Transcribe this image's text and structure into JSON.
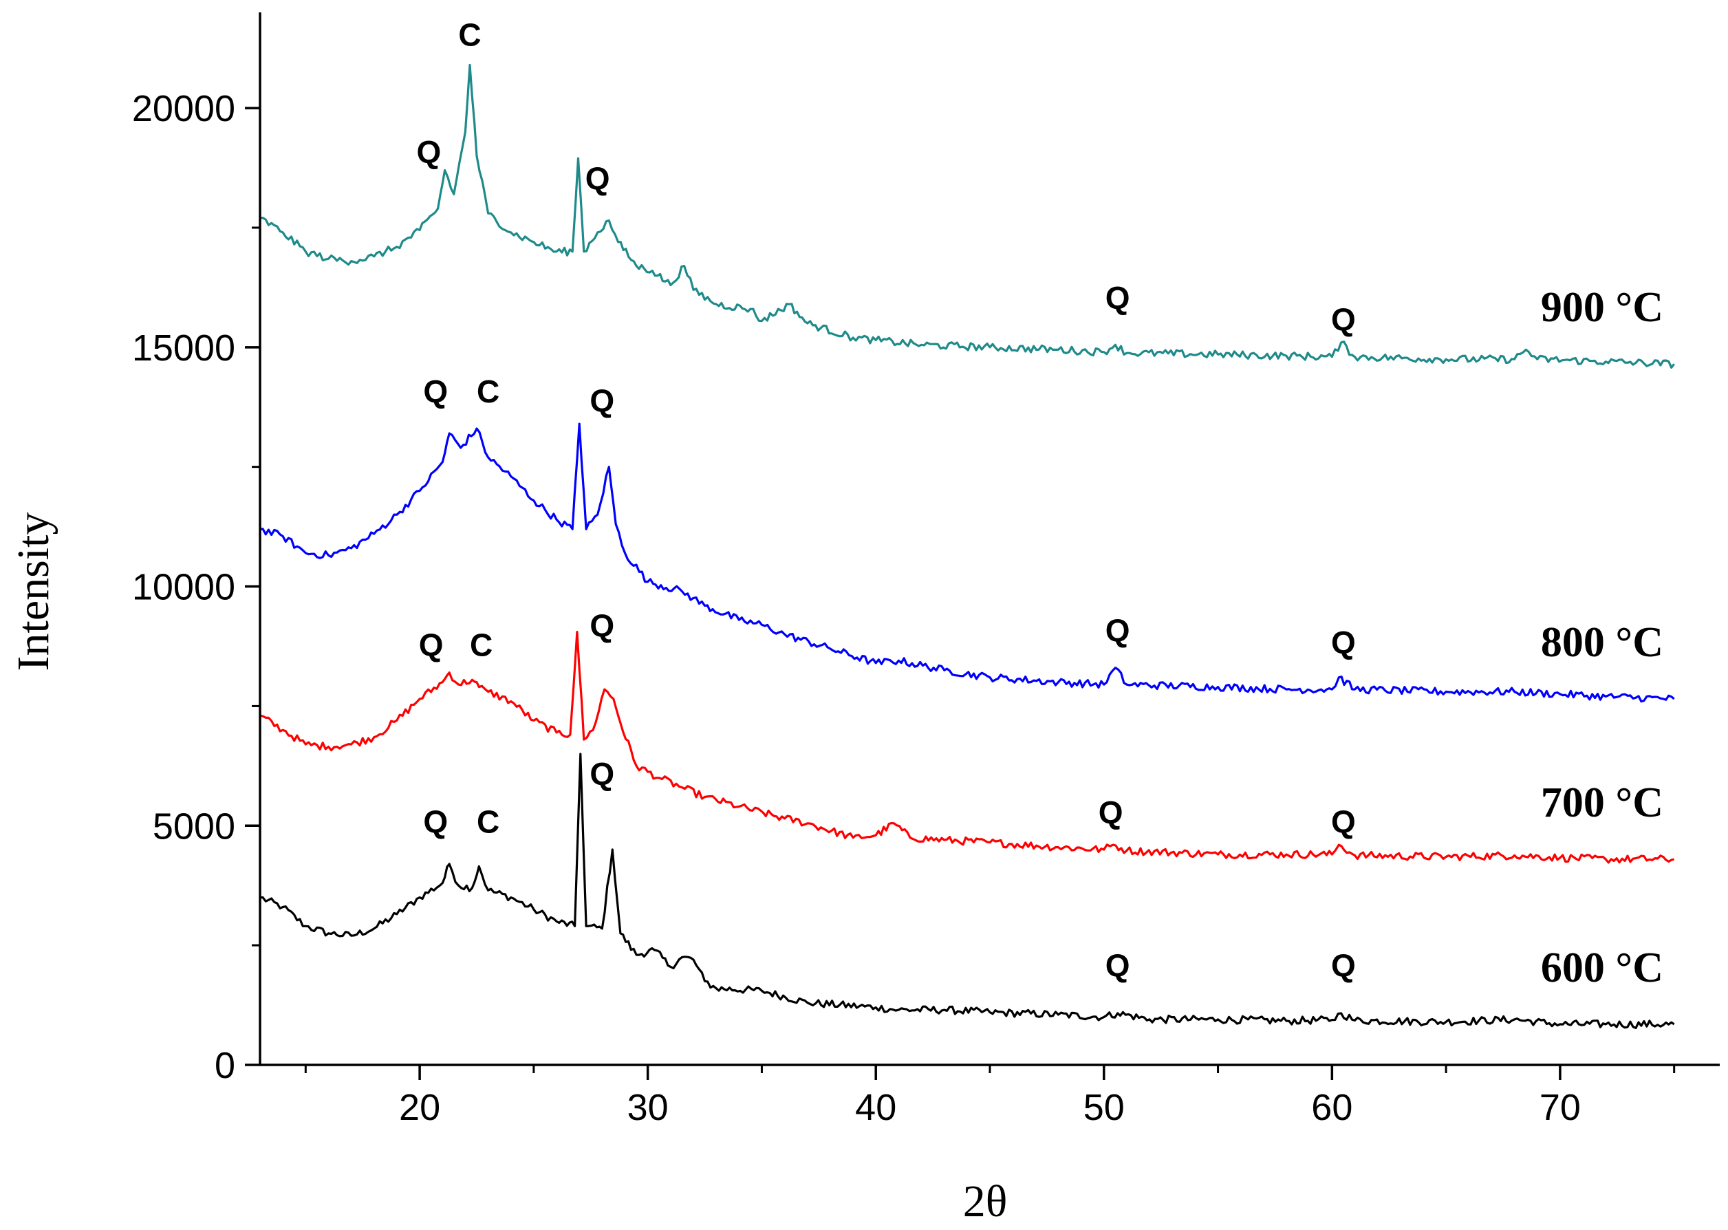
{
  "chart_data": {
    "type": "line",
    "title": "",
    "xlabel": "2θ",
    "ylabel": "Intensity",
    "xlim": [
      13,
      77
    ],
    "ylim": [
      0,
      22000
    ],
    "xticks": [
      20,
      30,
      40,
      50,
      60,
      70
    ],
    "yticks": [
      0,
      5000,
      10000,
      15000,
      20000
    ],
    "grid": false,
    "series": [
      {
        "name": "600 °C",
        "color": "#000000",
        "points": [
          [
            13,
            3500
          ],
          [
            14,
            3300
          ],
          [
            15,
            2900
          ],
          [
            16,
            2750
          ],
          [
            17,
            2700
          ],
          [
            18,
            2850
          ],
          [
            19,
            3150
          ],
          [
            20,
            3500
          ],
          [
            21,
            3800
          ],
          [
            21.3,
            4200
          ],
          [
            21.7,
            3750
          ],
          [
            22.3,
            3700
          ],
          [
            22.6,
            4150
          ],
          [
            23,
            3650
          ],
          [
            24,
            3500
          ],
          [
            25,
            3250
          ],
          [
            26,
            3000
          ],
          [
            26.8,
            2900
          ],
          [
            27.05,
            6500
          ],
          [
            27.3,
            2900
          ],
          [
            28,
            2850
          ],
          [
            28.45,
            4500
          ],
          [
            28.8,
            2750
          ],
          [
            29.5,
            2300
          ],
          [
            30.3,
            2400
          ],
          [
            31,
            2050
          ],
          [
            31.5,
            2250
          ],
          [
            32,
            2200
          ],
          [
            32.5,
            1750
          ],
          [
            33,
            1600
          ],
          [
            35,
            1550
          ],
          [
            37,
            1300
          ],
          [
            40,
            1200
          ],
          [
            41,
            1150
          ],
          [
            43,
            1150
          ],
          [
            45,
            1100
          ],
          [
            48,
            1050
          ],
          [
            50,
            1000
          ],
          [
            50.6,
            1080
          ],
          [
            52,
            950
          ],
          [
            55,
            950
          ],
          [
            58,
            920
          ],
          [
            60,
            940
          ],
          [
            60.4,
            1080
          ],
          [
            61,
            930
          ],
          [
            65,
            900
          ],
          [
            68,
            950
          ],
          [
            70,
            850
          ],
          [
            72,
            850
          ],
          [
            75,
            850
          ]
        ],
        "labels": [
          {
            "text": "Q",
            "x": 20.7,
            "y": 4850
          },
          {
            "text": "C",
            "x": 23.0,
            "y": 4850
          },
          {
            "text": "Q",
            "x": 28.0,
            "y": 5850
          },
          {
            "text": "Q",
            "x": 50.6,
            "y": 1850
          },
          {
            "text": "Q",
            "x": 60.5,
            "y": 1850
          }
        ],
        "temp_label": "600 °C"
      },
      {
        "name": "700 °C",
        "color": "#ff0000",
        "points": [
          [
            13,
            7300
          ],
          [
            14,
            7000
          ],
          [
            15,
            6700
          ],
          [
            16,
            6650
          ],
          [
            17,
            6700
          ],
          [
            18,
            6850
          ],
          [
            19,
            7200
          ],
          [
            20,
            7650
          ],
          [
            21,
            8000
          ],
          [
            21.3,
            8200
          ],
          [
            21.7,
            7950
          ],
          [
            22.3,
            8050
          ],
          [
            22.6,
            7900
          ],
          [
            23,
            7800
          ],
          [
            24,
            7600
          ],
          [
            25,
            7200
          ],
          [
            26,
            6950
          ],
          [
            26.6,
            6900
          ],
          [
            26.9,
            9050
          ],
          [
            27.2,
            6800
          ],
          [
            27.6,
            7000
          ],
          [
            28.1,
            7850
          ],
          [
            28.5,
            7650
          ],
          [
            28.8,
            7150
          ],
          [
            29.5,
            6250
          ],
          [
            30.5,
            6000
          ],
          [
            31.5,
            5800
          ],
          [
            32.5,
            5600
          ],
          [
            34,
            5400
          ],
          [
            36,
            5150
          ],
          [
            37,
            5050
          ],
          [
            39,
            4750
          ],
          [
            40,
            4800
          ],
          [
            40.8,
            5050
          ],
          [
            41.5,
            4750
          ],
          [
            43,
            4700
          ],
          [
            45,
            4650
          ],
          [
            48,
            4550
          ],
          [
            50,
            4500
          ],
          [
            50.4,
            4600
          ],
          [
            51,
            4480
          ],
          [
            55,
            4400
          ],
          [
            58,
            4400
          ],
          [
            60,
            4400
          ],
          [
            60.3,
            4600
          ],
          [
            61,
            4380
          ],
          [
            65,
            4350
          ],
          [
            68,
            4380
          ],
          [
            70,
            4330
          ],
          [
            72,
            4300
          ],
          [
            75,
            4300
          ]
        ],
        "labels": [
          {
            "text": "Q",
            "x": 20.5,
            "y": 8550
          },
          {
            "text": "C",
            "x": 22.7,
            "y": 8550
          },
          {
            "text": "Q",
            "x": 28.0,
            "y": 8950
          },
          {
            "text": "Q",
            "x": 50.3,
            "y": 5050
          },
          {
            "text": "Q",
            "x": 60.5,
            "y": 4850
          }
        ],
        "temp_label": "700 °C"
      },
      {
        "name": "800 °C",
        "color": "#0000ff",
        "points": [
          [
            13,
            11200
          ],
          [
            14,
            11050
          ],
          [
            15,
            10700
          ],
          [
            16,
            10650
          ],
          [
            17,
            10800
          ],
          [
            18,
            11100
          ],
          [
            19,
            11500
          ],
          [
            20,
            12000
          ],
          [
            21,
            12600
          ],
          [
            21.3,
            13200
          ],
          [
            21.8,
            12900
          ],
          [
            22.5,
            13300
          ],
          [
            23,
            12700
          ],
          [
            24,
            12300
          ],
          [
            25,
            11800
          ],
          [
            26,
            11400
          ],
          [
            26.7,
            11200
          ],
          [
            27.0,
            13400
          ],
          [
            27.3,
            11200
          ],
          [
            27.8,
            11500
          ],
          [
            28.3,
            12500
          ],
          [
            28.6,
            11300
          ],
          [
            29,
            10700
          ],
          [
            30,
            10100
          ],
          [
            31.5,
            9900
          ],
          [
            32.5,
            9600
          ],
          [
            34,
            9300
          ],
          [
            35,
            9200
          ],
          [
            36,
            9000
          ],
          [
            38,
            8700
          ],
          [
            40,
            8400
          ],
          [
            41,
            8450
          ],
          [
            43,
            8250
          ],
          [
            45,
            8100
          ],
          [
            48,
            8000
          ],
          [
            50,
            7950
          ],
          [
            50.5,
            8300
          ],
          [
            51,
            7950
          ],
          [
            55,
            7900
          ],
          [
            58,
            7850
          ],
          [
            60,
            7850
          ],
          [
            60.3,
            8100
          ],
          [
            61,
            7850
          ],
          [
            65,
            7800
          ],
          [
            68,
            7800
          ],
          [
            70,
            7750
          ],
          [
            72,
            7700
          ],
          [
            75,
            7650
          ]
        ],
        "labels": [
          {
            "text": "Q",
            "x": 20.7,
            "y": 13850
          },
          {
            "text": "C",
            "x": 23.0,
            "y": 13850
          },
          {
            "text": "Q",
            "x": 28.0,
            "y": 13650
          },
          {
            "text": "Q",
            "x": 50.6,
            "y": 8850
          },
          {
            "text": "Q",
            "x": 60.5,
            "y": 8600
          }
        ],
        "temp_label": "800 °C"
      },
      {
        "name": "900 °C",
        "color": "#1f8a8a",
        "points": [
          [
            13,
            17700
          ],
          [
            14,
            17400
          ],
          [
            15,
            17000
          ],
          [
            16,
            16850
          ],
          [
            17,
            16800
          ],
          [
            18,
            16900
          ],
          [
            19,
            17100
          ],
          [
            20,
            17450
          ],
          [
            20.8,
            17900
          ],
          [
            21.1,
            18700
          ],
          [
            21.5,
            18200
          ],
          [
            22.0,
            19500
          ],
          [
            22.2,
            20900
          ],
          [
            22.5,
            19000
          ],
          [
            23,
            17800
          ],
          [
            24,
            17400
          ],
          [
            25,
            17200
          ],
          [
            26,
            17000
          ],
          [
            26.7,
            17000
          ],
          [
            26.95,
            18950
          ],
          [
            27.2,
            17000
          ],
          [
            27.8,
            17400
          ],
          [
            28.3,
            17650
          ],
          [
            28.7,
            17200
          ],
          [
            29.5,
            16700
          ],
          [
            30.2,
            16600
          ],
          [
            31,
            16300
          ],
          [
            31.6,
            16700
          ],
          [
            32,
            16200
          ],
          [
            33,
            15900
          ],
          [
            34.5,
            15800
          ],
          [
            35,
            15550
          ],
          [
            36.2,
            15900
          ],
          [
            37,
            15500
          ],
          [
            39,
            15200
          ],
          [
            40,
            15150
          ],
          [
            42,
            15050
          ],
          [
            45,
            15000
          ],
          [
            48,
            14950
          ],
          [
            50,
            14900
          ],
          [
            50.5,
            15050
          ],
          [
            51,
            14880
          ],
          [
            55,
            14850
          ],
          [
            58,
            14820
          ],
          [
            60,
            14800
          ],
          [
            60.4,
            15100
          ],
          [
            61,
            14800
          ],
          [
            65,
            14750
          ],
          [
            68,
            14750
          ],
          [
            68.5,
            14950
          ],
          [
            69,
            14750
          ],
          [
            72,
            14700
          ],
          [
            75,
            14650
          ]
        ],
        "labels": [
          {
            "text": "Q",
            "x": 20.4,
            "y": 18850
          },
          {
            "text": "C",
            "x": 22.2,
            "y": 21300
          },
          {
            "text": "Q",
            "x": 27.8,
            "y": 18300
          },
          {
            "text": "Q",
            "x": 50.6,
            "y": 15800
          },
          {
            "text": "Q",
            "x": 60.5,
            "y": 15350
          }
        ],
        "temp_label": "900 °C"
      }
    ]
  }
}
